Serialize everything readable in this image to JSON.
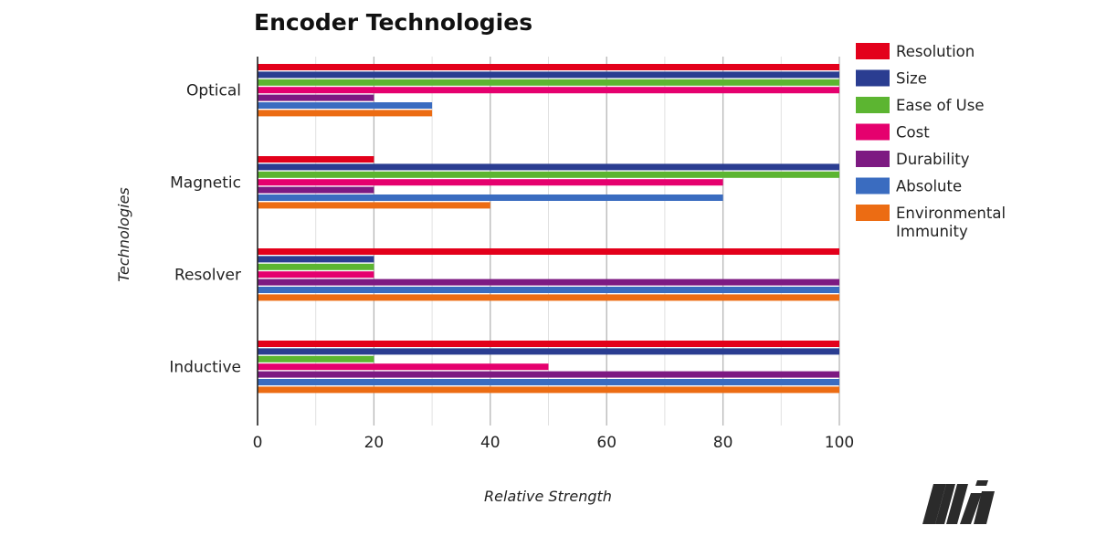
{
  "chart_data": {
    "type": "bar",
    "orientation": "horizontal",
    "title": "Encoder Technologies",
    "xlabel": "Relative Strength",
    "ylabel": "Technologies",
    "xlim": [
      0,
      100
    ],
    "xticks": [
      "0",
      "20",
      "40",
      "60",
      "80",
      "100"
    ],
    "grid": true,
    "legend_position": "right",
    "categories": [
      "Optical",
      "Magnetic",
      "Resolver",
      "Inductive"
    ],
    "series": [
      {
        "name": "Resolution",
        "color": "#e3001b",
        "values": [
          100,
          20,
          100,
          100
        ]
      },
      {
        "name": "Size",
        "color": "#2a3d91",
        "values": [
          100,
          100,
          20,
          100
        ]
      },
      {
        "name": "Ease of Use",
        "color": "#5cb531",
        "values": [
          100,
          100,
          20,
          20
        ]
      },
      {
        "name": "Cost",
        "color": "#e5006e",
        "values": [
          100,
          80,
          20,
          50
        ]
      },
      {
        "name": "Durability",
        "color": "#7d1a82",
        "values": [
          20,
          20,
          100,
          100
        ]
      },
      {
        "name": "Absolute",
        "color": "#3a6cc0",
        "values": [
          30,
          80,
          100,
          100
        ]
      },
      {
        "name": "Environmental Immunity",
        "legend_lines": [
          "Environmental",
          "Immunity"
        ],
        "color": "#ec6c13",
        "values": [
          30,
          40,
          100,
          100
        ]
      }
    ]
  },
  "logo": {
    "text": "Mi"
  }
}
